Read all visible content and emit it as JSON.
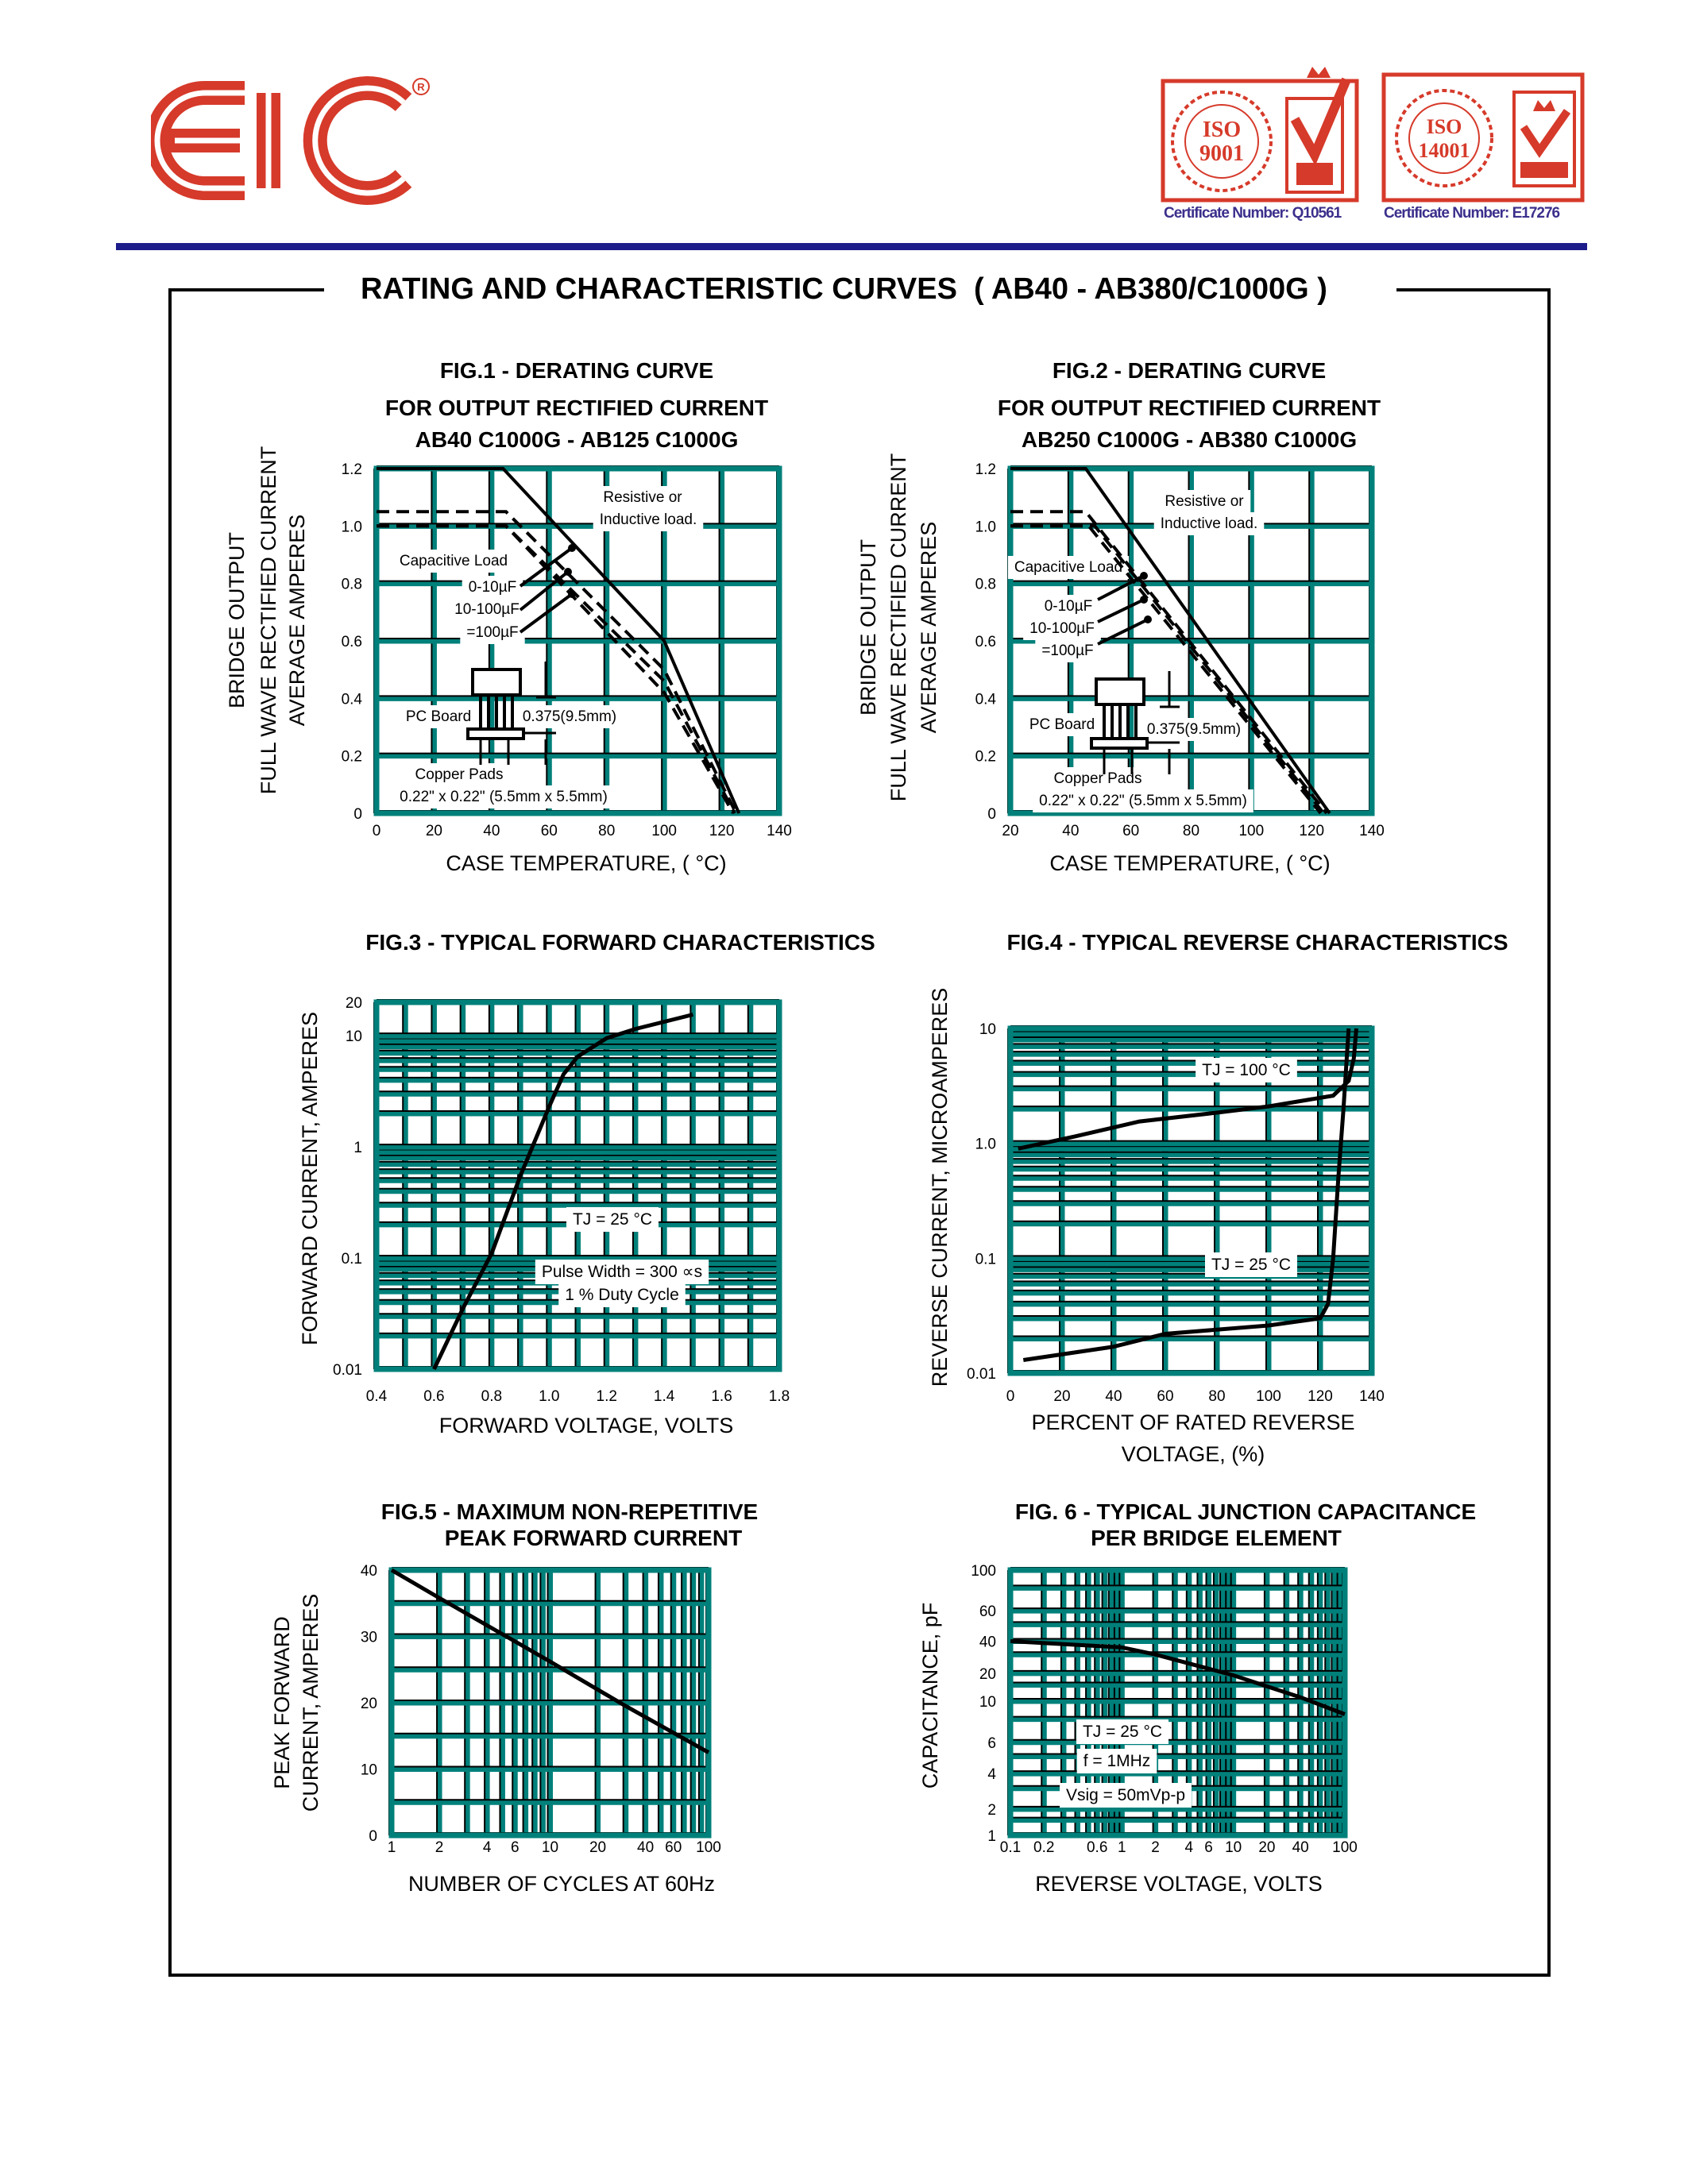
{
  "header": {
    "logo_text": "EIC",
    "registered_mark": "®",
    "badges": [
      {
        "line1": "ISO",
        "line2": "9001",
        "certificate": "Certificate Number: Q10561"
      },
      {
        "line1": "ISO",
        "line2": "14001",
        "certificate": "Certificate Number: E17276"
      }
    ]
  },
  "page_title": "RATING AND CHARACTERISTIC CURVES  ( AB40 - AB380/C1000G )",
  "colors": {
    "grid": "#00807a",
    "logo": "#d63a2a",
    "rule": "#1c1c8a",
    "certificate_text": "#3b2f8c"
  },
  "chart_data": [
    {
      "type": "line",
      "title_lines": [
        "FIG.1 - DERATING CURVE",
        "FOR OUTPUT RECTIFIED CURRENT",
        "AB40 C1000G - AB125 C1000G"
      ],
      "xlabel_lines": [
        "CASE TEMPERATURE, ( °C)"
      ],
      "ylabel_lines": [
        "BRIDGE OUTPUT",
        "FULL WAVE RECTIFIED CURRENT",
        "AVERAGE AMPERES"
      ],
      "xscale": "linear",
      "yscale": "linear",
      "xlim": [
        0,
        140
      ],
      "ylim": [
        0,
        1.2
      ],
      "xticks": [
        "0",
        "20",
        "40",
        "60",
        "80",
        "100",
        "120",
        "140"
      ],
      "yticks": [
        "0",
        "0.2",
        "0.4",
        "0.6",
        "0.8",
        "1.0",
        "1.2"
      ],
      "grid": true,
      "series": [
        {
          "name": "Resistive or Inductive load",
          "style": "solid",
          "points": [
            [
              0,
              1.2
            ],
            [
              44,
              1.2
            ],
            [
              100,
              0.6
            ],
            [
              126,
              0
            ]
          ]
        },
        {
          "name": "0-10µF",
          "style": "dashed",
          "points": [
            [
              0,
              1.05
            ],
            [
              45,
              1.05
            ],
            [
              100,
              0.5
            ],
            [
              125,
              0
            ]
          ]
        },
        {
          "name": "10-100µF",
          "style": "dashed",
          "points": [
            [
              0,
              1.0
            ],
            [
              45,
              1.0
            ],
            [
              100,
              0.46
            ],
            [
              124.5,
              0
            ]
          ]
        },
        {
          "name": "=100µF",
          "style": "dashed",
          "points": [
            [
              0,
              1.0
            ],
            [
              45,
              1.0
            ],
            [
              100,
              0.42
            ],
            [
              124,
              0
            ]
          ]
        }
      ],
      "annotations": [
        "Resistive or",
        "Inductive load.",
        "Capacitive Load",
        "0-10µF",
        "10-100µF",
        "=100µF",
        "PC Board",
        "0.375(9.5mm)",
        "Copper Pads",
        "0.22\" x 0.22\" (5.5mm x 5.5mm)"
      ]
    },
    {
      "type": "line",
      "title_lines": [
        "FIG.2 - DERATING CURVE",
        "FOR OUTPUT RECTIFIED CURRENT",
        "AB250 C1000G - AB380 C1000G"
      ],
      "xlabel_lines": [
        "CASE TEMPERATURE, ( °C)"
      ],
      "ylabel_lines": [
        "BRIDGE OUTPUT",
        "FULL WAVE RECTIFIED CURRENT",
        "AVERAGE AMPERES"
      ],
      "xscale": "linear",
      "yscale": "linear",
      "xlim": [
        20,
        140
      ],
      "ylim": [
        0,
        1.2
      ],
      "xticks": [
        "20",
        "40",
        "60",
        "80",
        "100",
        "120",
        "140"
      ],
      "yticks": [
        "0",
        "0.2",
        "0.4",
        "0.6",
        "0.8",
        "1.0",
        "1.2"
      ],
      "grid": true,
      "series": [
        {
          "name": "Resistive or Inductive load",
          "style": "solid",
          "points": [
            [
              20,
              1.2
            ],
            [
              45,
              1.2
            ],
            [
              126,
              0
            ]
          ]
        },
        {
          "name": "0-10µF",
          "style": "dashed",
          "points": [
            [
              20,
              1.05
            ],
            [
              45,
              1.05
            ],
            [
              125,
              0
            ]
          ]
        },
        {
          "name": "10-100µF",
          "style": "dashed",
          "points": [
            [
              20,
              1.0
            ],
            [
              48,
              1.0
            ],
            [
              124,
              0
            ]
          ]
        },
        {
          "name": "=100µF",
          "style": "dashed",
          "points": [
            [
              20,
              1.0
            ],
            [
              46,
              1.0
            ],
            [
              123,
              0
            ]
          ]
        }
      ],
      "annotations": [
        "Resistive or",
        "Inductive load.",
        "Capacitive Load",
        "0-10µF",
        "10-100µF",
        "=100µF",
        "PC Board",
        "0.375(9.5mm)",
        "Copper Pads",
        "0.22\" x 0.22\" (5.5mm x 5.5mm)"
      ]
    },
    {
      "type": "line",
      "title_lines": [
        "FIG.3 - TYPICAL FORWARD CHARACTERISTICS"
      ],
      "xlabel_lines": [
        "FORWARD VOLTAGE, VOLTS"
      ],
      "ylabel_lines": [
        "FORWARD CURRENT, AMPERES"
      ],
      "xscale": "linear",
      "yscale": "log",
      "xlim": [
        0.4,
        1.8
      ],
      "ylim": [
        0.01,
        20
      ],
      "xticks": [
        "0.4",
        "0.6",
        "0.8",
        "1.0",
        "1.2",
        "1.4",
        "1.6",
        "1.8"
      ],
      "yticks": [
        "0.01",
        "0.1",
        "1",
        "10",
        "20"
      ],
      "grid": true,
      "series": [
        {
          "style": "solid",
          "points": [
            [
              0.6,
              0.01
            ],
            [
              0.7,
              0.035
            ],
            [
              0.8,
              0.11
            ],
            [
              0.9,
              0.55
            ],
            [
              1.0,
              2.3
            ],
            [
              1.05,
              4.5
            ],
            [
              1.1,
              6.5
            ],
            [
              1.2,
              9.5
            ],
            [
              1.3,
              11.5
            ],
            [
              1.5,
              15.5
            ]
          ]
        }
      ],
      "annotations": [
        "TJ = 25 °C",
        "Pulse Width = 300 ∝s",
        "1 % Duty Cycle"
      ]
    },
    {
      "type": "line",
      "title_lines": [
        "FIG.4 - TYPICAL REVERSE CHARACTERISTICS"
      ],
      "xlabel_lines": [
        "PERCENT OF RATED REVERSE",
        "VOLTAGE, (%)"
      ],
      "ylabel_lines": [
        "REVERSE CURRENT, MICROAMPERES"
      ],
      "xscale": "linear",
      "yscale": "log",
      "xlim": [
        0,
        140
      ],
      "ylim": [
        0.01,
        10
      ],
      "xticks": [
        "0",
        "20",
        "40",
        "60",
        "80",
        "100",
        "120",
        "140"
      ],
      "yticks": [
        "0.01",
        "0.1",
        "1.0",
        "10"
      ],
      "grid": true,
      "series": [
        {
          "name": "TJ = 100 °C",
          "style": "solid",
          "points": [
            [
              3,
              0.9
            ],
            [
              25,
              1.15
            ],
            [
              50,
              1.55
            ],
            [
              80,
              1.85
            ],
            [
              100,
              2.1
            ],
            [
              125,
              2.6
            ],
            [
              131,
              3.5
            ],
            [
              133,
              5.5
            ],
            [
              134,
              10
            ]
          ]
        },
        {
          "name": "TJ = 25 °C",
          "style": "solid",
          "points": [
            [
              5,
              0.013
            ],
            [
              40,
              0.017
            ],
            [
              60,
              0.022
            ],
            [
              100,
              0.026
            ],
            [
              120,
              0.03
            ],
            [
              123,
              0.04
            ],
            [
              125,
              0.1
            ],
            [
              127,
              0.5
            ],
            [
              129,
              2
            ],
            [
              131,
              10
            ]
          ]
        }
      ],
      "annotations": [
        "TJ = 100 °C",
        "TJ = 25 °C"
      ]
    },
    {
      "type": "line",
      "title_lines": [
        "FIG.5 - MAXIMUM NON-REPETITIVE",
        "PEAK FORWARD CURRENT"
      ],
      "xlabel_lines": [
        "NUMBER OF CYCLES AT 60Hz"
      ],
      "ylabel_lines": [
        "PEAK FORWARD",
        "CURRENT, AMPERES"
      ],
      "xscale": "log",
      "yscale": "linear",
      "xlim": [
        1,
        100
      ],
      "ylim": [
        0,
        40
      ],
      "xticks": [
        "1",
        "2",
        "4",
        "6",
        "10",
        "20",
        "40",
        "60",
        "100"
      ],
      "yticks": [
        "0",
        "10",
        "20",
        "30",
        "40"
      ],
      "grid": true,
      "series": [
        {
          "style": "solid",
          "points": [
            [
              1,
              40
            ],
            [
              2,
              35.8
            ],
            [
              10,
              26.2
            ],
            [
              30,
              19.5
            ],
            [
              100,
              12.5
            ]
          ]
        }
      ],
      "annotations": []
    },
    {
      "type": "line",
      "title_lines": [
        "FIG. 6 - TYPICAL JUNCTION CAPACITANCE",
        "PER BRIDGE ELEMENT"
      ],
      "xlabel_lines": [
        "REVERSE VOLTAGE, VOLTS"
      ],
      "ylabel_lines": [
        "CAPACITANCE, pF"
      ],
      "xscale": "log",
      "yscale": "nonuniform",
      "xlim": [
        0.1,
        100
      ],
      "ylim": [
        1,
        100
      ],
      "xticks": [
        "0.1",
        "0.2",
        "0.6",
        "1",
        "2",
        "4",
        "6",
        "10",
        "20",
        "40",
        "100"
      ],
      "yticks": [
        "1",
        "2",
        "4",
        "6",
        "10",
        "20",
        "40",
        "60",
        "100"
      ],
      "grid": true,
      "series": [
        {
          "style": "solid",
          "points": [
            [
              0.1,
              40
            ],
            [
              1,
              35
            ],
            [
              2,
              30
            ],
            [
              10,
              19
            ],
            [
              40,
              11
            ],
            [
              100,
              8.5
            ]
          ]
        }
      ],
      "annotations": [
        "TJ = 25 °C",
        "f = 1MHz",
        "Vsig = 50mVp-p"
      ]
    }
  ]
}
